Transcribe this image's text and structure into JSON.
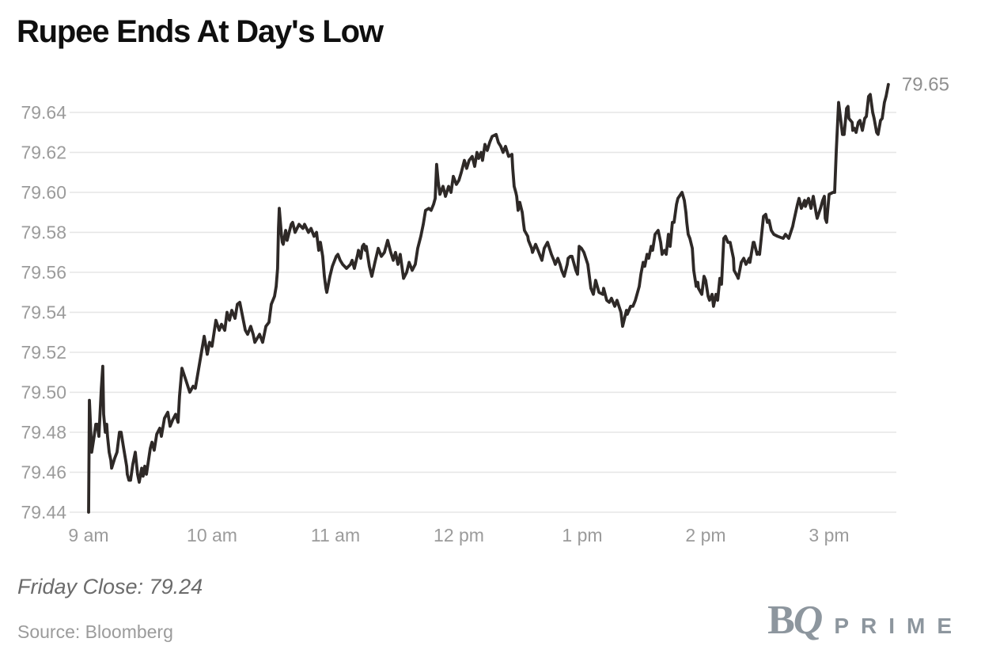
{
  "title": "Rupee Ends At Day's Low",
  "footer": {
    "note": "Friday Close: 79.24",
    "source": "Source: Bloomberg"
  },
  "logo": {
    "b": "B",
    "q": "Q",
    "prime": "PRIME",
    "color": "#8d969e"
  },
  "chart_data": {
    "type": "line",
    "title": "Rupee Ends At Day's Low",
    "x_unit": "minutes since 9:00 am",
    "xlim": [
      0,
      390
    ],
    "ylim": [
      79.43,
      79.66
    ],
    "grid": true,
    "end_label": "79.65",
    "friday_close": 79.24,
    "line_color": "#2e2927",
    "grid_color": "#e5e5e5",
    "axis_label_color": "#9b9b9b",
    "end_label_color": "#8f8f8f",
    "x_ticks": [
      {
        "t": 0,
        "label": "9 am"
      },
      {
        "t": 60,
        "label": "10 am"
      },
      {
        "t": 120,
        "label": "11 am"
      },
      {
        "t": 180,
        "label": "12 pm"
      },
      {
        "t": 240,
        "label": "1 pm"
      },
      {
        "t": 300,
        "label": "2 pm"
      },
      {
        "t": 360,
        "label": "3 pm"
      }
    ],
    "y_ticks": [
      "79.44",
      "79.46",
      "79.48",
      "79.50",
      "79.52",
      "79.54",
      "79.56",
      "79.58",
      "79.60",
      "79.62",
      "79.64"
    ],
    "points": [
      [
        0,
        79.44
      ],
      [
        0.4,
        79.496
      ],
      [
        1.5,
        79.47
      ],
      [
        2.7,
        79.478
      ],
      [
        3.5,
        79.484
      ],
      [
        4.2,
        79.484
      ],
      [
        5,
        79.478
      ],
      [
        6.2,
        79.502
      ],
      [
        6.9,
        79.513
      ],
      [
        7.3,
        79.489
      ],
      [
        8.1,
        79.48
      ],
      [
        8.8,
        79.484
      ],
      [
        9.2,
        79.478
      ],
      [
        10,
        79.47
      ],
      [
        10.8,
        79.466
      ],
      [
        11.2,
        79.462
      ],
      [
        12.7,
        79.467
      ],
      [
        13.8,
        79.47
      ],
      [
        15,
        79.48
      ],
      [
        15.8,
        79.48
      ],
      [
        16.9,
        79.473
      ],
      [
        18.5,
        79.463
      ],
      [
        18.8,
        79.459
      ],
      [
        19.6,
        79.456
      ],
      [
        20.4,
        79.456
      ],
      [
        21.5,
        79.464
      ],
      [
        22.7,
        79.47
      ],
      [
        23.8,
        79.459
      ],
      [
        24.6,
        79.455
      ],
      [
        25.8,
        79.462
      ],
      [
        26.5,
        79.458
      ],
      [
        27.3,
        79.463
      ],
      [
        28.1,
        79.459
      ],
      [
        30,
        79.472
      ],
      [
        30.8,
        79.475
      ],
      [
        31.9,
        79.471
      ],
      [
        33.1,
        79.479
      ],
      [
        34.6,
        79.482
      ],
      [
        35.4,
        79.478
      ],
      [
        36.9,
        79.487
      ],
      [
        38.5,
        79.49
      ],
      [
        39.6,
        79.483
      ],
      [
        40.8,
        79.486
      ],
      [
        42.3,
        79.489
      ],
      [
        43.5,
        79.485
      ],
      [
        44.2,
        79.498
      ],
      [
        45.4,
        79.512
      ],
      [
        47.3,
        79.506
      ],
      [
        49.2,
        79.5
      ],
      [
        50.8,
        79.503
      ],
      [
        51.9,
        79.502
      ],
      [
        56.2,
        79.528
      ],
      [
        57.7,
        79.519
      ],
      [
        58.8,
        79.525
      ],
      [
        60,
        79.523
      ],
      [
        61.9,
        79.536
      ],
      [
        63.5,
        79.531
      ],
      [
        64.6,
        79.534
      ],
      [
        66.2,
        79.531
      ],
      [
        67.3,
        79.54
      ],
      [
        68.5,
        79.536
      ],
      [
        69.6,
        79.541
      ],
      [
        71.2,
        79.537
      ],
      [
        72.3,
        79.544
      ],
      [
        73.5,
        79.545
      ],
      [
        76.2,
        79.531
      ],
      [
        77.3,
        79.529
      ],
      [
        78.8,
        79.533
      ],
      [
        80,
        79.529
      ],
      [
        80.8,
        79.525
      ],
      [
        83.1,
        79.529
      ],
      [
        84.6,
        79.525
      ],
      [
        86.2,
        79.533
      ],
      [
        87.7,
        79.535
      ],
      [
        88.8,
        79.544
      ],
      [
        90.4,
        79.548
      ],
      [
        91.2,
        79.553
      ],
      [
        91.9,
        79.562
      ],
      [
        92.3,
        79.582
      ],
      [
        92.7,
        79.592
      ],
      [
        93.8,
        79.578
      ],
      [
        94.2,
        79.575
      ],
      [
        94.6,
        79.574
      ],
      [
        95.8,
        79.581
      ],
      [
        96.5,
        79.576
      ],
      [
        98.5,
        79.584
      ],
      [
        99.2,
        79.585
      ],
      [
        100.4,
        79.58
      ],
      [
        102.3,
        79.584
      ],
      [
        104.2,
        79.582
      ],
      [
        105,
        79.584
      ],
      [
        106.9,
        79.58
      ],
      [
        108.1,
        79.582
      ],
      [
        109.6,
        79.578
      ],
      [
        110.8,
        79.58
      ],
      [
        111.9,
        79.571
      ],
      [
        112.7,
        79.575
      ],
      [
        113.8,
        79.568
      ],
      [
        114.6,
        79.558
      ],
      [
        115.4,
        79.552
      ],
      [
        115.8,
        79.55
      ],
      [
        117.3,
        79.558
      ],
      [
        118.5,
        79.563
      ],
      [
        120.4,
        79.568
      ],
      [
        121.2,
        79.569
      ],
      [
        122.3,
        79.566
      ],
      [
        123.5,
        79.564
      ],
      [
        125.4,
        79.562
      ],
      [
        127.3,
        79.564
      ],
      [
        128.1,
        79.566
      ],
      [
        129.2,
        79.562
      ],
      [
        130.8,
        79.569
      ],
      [
        131.2,
        79.571
      ],
      [
        132.3,
        79.567
      ],
      [
        133.1,
        79.573
      ],
      [
        133.8,
        79.574
      ],
      [
        134.6,
        79.571
      ],
      [
        135,
        79.573
      ],
      [
        136.5,
        79.563
      ],
      [
        137.7,
        79.558
      ],
      [
        139.2,
        79.565
      ],
      [
        140.8,
        79.572
      ],
      [
        142.3,
        79.568
      ],
      [
        143.8,
        79.57
      ],
      [
        145.4,
        79.576
      ],
      [
        146.9,
        79.57
      ],
      [
        148.1,
        79.566
      ],
      [
        149.2,
        79.57
      ],
      [
        150.4,
        79.564
      ],
      [
        151.5,
        79.569
      ],
      [
        153.1,
        79.557
      ],
      [
        154.6,
        79.56
      ],
      [
        155.8,
        79.565
      ],
      [
        157.3,
        79.561
      ],
      [
        158.8,
        79.564
      ],
      [
        160,
        79.572
      ],
      [
        161.5,
        79.578
      ],
      [
        162.7,
        79.584
      ],
      [
        163.8,
        79.591
      ],
      [
        165.4,
        79.592
      ],
      [
        166.5,
        79.591
      ],
      [
        167.7,
        79.594
      ],
      [
        168.5,
        79.597
      ],
      [
        169.2,
        79.614
      ],
      [
        170,
        79.605
      ],
      [
        170.8,
        79.599
      ],
      [
        171.5,
        79.601
      ],
      [
        172.3,
        79.603
      ],
      [
        173.5,
        79.598
      ],
      [
        175,
        79.603
      ],
      [
        176.2,
        79.6
      ],
      [
        177.3,
        79.608
      ],
      [
        178.8,
        79.604
      ],
      [
        180,
        79.606
      ],
      [
        181.2,
        79.61
      ],
      [
        182.7,
        79.616
      ],
      [
        183.8,
        79.612
      ],
      [
        185,
        79.616
      ],
      [
        186.5,
        79.618
      ],
      [
        187.7,
        79.613
      ],
      [
        188.8,
        79.62
      ],
      [
        189.6,
        79.617
      ],
      [
        190.8,
        79.62
      ],
      [
        191.5,
        79.616
      ],
      [
        192.7,
        79.624
      ],
      [
        193.8,
        79.621
      ],
      [
        195,
        79.625
      ],
      [
        196.2,
        79.628
      ],
      [
        198.1,
        79.629
      ],
      [
        199.2,
        79.625
      ],
      [
        200.4,
        79.623
      ],
      [
        201.5,
        79.62
      ],
      [
        202.7,
        79.623
      ],
      [
        204.2,
        79.618
      ],
      [
        205.8,
        79.619
      ],
      [
        206.2,
        79.612
      ],
      [
        206.9,
        79.603
      ],
      [
        207.7,
        79.6
      ],
      [
        208.1,
        79.598
      ],
      [
        208.8,
        79.591
      ],
      [
        209.6,
        79.595
      ],
      [
        210.8,
        79.59
      ],
      [
        211.5,
        79.584
      ],
      [
        211.9,
        79.581
      ],
      [
        213.5,
        79.578
      ],
      [
        213.8,
        79.576
      ],
      [
        215.4,
        79.572
      ],
      [
        215.8,
        79.57
      ],
      [
        217.3,
        79.574
      ],
      [
        218.5,
        79.571
      ],
      [
        219.6,
        79.568
      ],
      [
        220.4,
        79.566
      ],
      [
        221.5,
        79.572
      ],
      [
        223.1,
        79.575
      ],
      [
        225,
        79.569
      ],
      [
        226.2,
        79.566
      ],
      [
        226.9,
        79.564
      ],
      [
        228.1,
        79.567
      ],
      [
        229.2,
        79.564
      ],
      [
        230,
        79.561
      ],
      [
        231.2,
        79.558
      ],
      [
        232.7,
        79.564
      ],
      [
        233.1,
        79.567
      ],
      [
        234.2,
        79.568
      ],
      [
        235,
        79.568
      ],
      [
        236.9,
        79.561
      ],
      [
        237.7,
        79.559
      ],
      [
        238.5,
        79.573
      ],
      [
        239.6,
        79.572
      ],
      [
        240.8,
        79.57
      ],
      [
        242.7,
        79.564
      ],
      [
        244.2,
        79.552
      ],
      [
        245.4,
        79.549
      ],
      [
        246.5,
        79.556
      ],
      [
        248.1,
        79.55
      ],
      [
        250,
        79.549
      ],
      [
        250.4,
        79.552
      ],
      [
        251.9,
        79.546
      ],
      [
        253.1,
        79.545
      ],
      [
        254.2,
        79.547
      ],
      [
        255.8,
        79.543
      ],
      [
        256.9,
        79.546
      ],
      [
        258.8,
        79.54
      ],
      [
        259.6,
        79.533
      ],
      [
        261.5,
        79.541
      ],
      [
        261.9,
        79.539
      ],
      [
        263.5,
        79.543
      ],
      [
        264.6,
        79.543
      ],
      [
        265.8,
        79.546
      ],
      [
        267.7,
        79.553
      ],
      [
        268.5,
        79.559
      ],
      [
        269.6,
        79.565
      ],
      [
        270.4,
        79.563
      ],
      [
        271.5,
        79.569
      ],
      [
        272.3,
        79.567
      ],
      [
        273.5,
        79.573
      ],
      [
        274.2,
        79.571
      ],
      [
        275.4,
        79.579
      ],
      [
        276.9,
        79.581
      ],
      [
        278.1,
        79.575
      ],
      [
        278.8,
        79.569
      ],
      [
        280,
        79.571
      ],
      [
        280.8,
        79.569
      ],
      [
        281.9,
        79.579
      ],
      [
        282.7,
        79.573
      ],
      [
        283.8,
        79.585
      ],
      [
        284.6,
        79.585
      ],
      [
        285.8,
        79.594
      ],
      [
        286.5,
        79.597
      ],
      [
        288.5,
        79.6
      ],
      [
        289.6,
        79.596
      ],
      [
        290.4,
        79.59
      ],
      [
        290.8,
        79.585
      ],
      [
        291.5,
        79.579
      ],
      [
        292.3,
        79.577
      ],
      [
        293.5,
        79.572
      ],
      [
        294.2,
        79.561
      ],
      [
        295.4,
        79.553
      ],
      [
        296.2,
        79.555
      ],
      [
        296.5,
        79.552
      ],
      [
        298.1,
        79.549
      ],
      [
        299.2,
        79.558
      ],
      [
        300,
        79.556
      ],
      [
        301.2,
        79.548
      ],
      [
        301.9,
        79.546
      ],
      [
        303.1,
        79.549
      ],
      [
        303.8,
        79.543
      ],
      [
        305,
        79.549
      ],
      [
        305.8,
        79.546
      ],
      [
        306.9,
        79.557
      ],
      [
        307.7,
        79.554
      ],
      [
        308.8,
        79.577
      ],
      [
        309.6,
        79.578
      ],
      [
        310.8,
        79.575
      ],
      [
        311.9,
        79.575
      ],
      [
        313.5,
        79.567
      ],
      [
        313.8,
        79.561
      ],
      [
        315.4,
        79.558
      ],
      [
        315.8,
        79.557
      ],
      [
        317.3,
        79.565
      ],
      [
        318.5,
        79.567
      ],
      [
        319.6,
        79.564
      ],
      [
        321.2,
        79.567
      ],
      [
        321.5,
        79.565
      ],
      [
        323.1,
        79.575
      ],
      [
        323.5,
        79.575
      ],
      [
        325,
        79.569
      ],
      [
        325.4,
        79.57
      ],
      [
        326.2,
        79.569
      ],
      [
        328.1,
        79.588
      ],
      [
        329.2,
        79.589
      ],
      [
        330,
        79.585
      ],
      [
        330.8,
        79.586
      ],
      [
        331.9,
        79.581
      ],
      [
        333.1,
        79.579
      ],
      [
        335,
        79.578
      ],
      [
        337.7,
        79.577
      ],
      [
        338.8,
        79.579
      ],
      [
        340.4,
        79.577
      ],
      [
        342.3,
        79.583
      ],
      [
        342.7,
        79.585
      ],
      [
        344.6,
        79.594
      ],
      [
        345.4,
        79.597
      ],
      [
        346.5,
        79.592
      ],
      [
        348.1,
        79.596
      ],
      [
        348.5,
        79.593
      ],
      [
        350,
        79.597
      ],
      [
        351.2,
        79.592
      ],
      [
        352.3,
        79.598
      ],
      [
        353.8,
        79.589
      ],
      [
        354.2,
        79.587
      ],
      [
        355.8,
        79.592
      ],
      [
        356.9,
        79.596
      ],
      [
        357.7,
        79.598
      ],
      [
        358.1,
        79.587
      ],
      [
        358.8,
        79.585
      ],
      [
        360,
        79.599
      ],
      [
        361.9,
        79.6
      ],
      [
        362.7,
        79.6
      ],
      [
        363.5,
        79.621
      ],
      [
        364.6,
        79.645
      ],
      [
        365.8,
        79.635
      ],
      [
        366.5,
        79.629
      ],
      [
        367.3,
        79.629
      ],
      [
        368.5,
        79.642
      ],
      [
        369.2,
        79.643
      ],
      [
        369.6,
        79.637
      ],
      [
        371.2,
        79.635
      ],
      [
        371.5,
        79.631
      ],
      [
        372.3,
        79.632
      ],
      [
        373.1,
        79.63
      ],
      [
        374.2,
        79.635
      ],
      [
        375,
        79.636
      ],
      [
        376.2,
        79.631
      ],
      [
        377.3,
        79.637
      ],
      [
        378.1,
        79.638
      ],
      [
        379.2,
        79.648
      ],
      [
        380,
        79.649
      ],
      [
        381.2,
        79.64
      ],
      [
        381.9,
        79.637
      ],
      [
        383.1,
        79.63
      ],
      [
        383.8,
        79.629
      ],
      [
        385,
        79.636
      ],
      [
        385.8,
        79.637
      ],
      [
        386.9,
        79.645
      ],
      [
        387.7,
        79.648
      ],
      [
        388.8,
        79.654
      ]
    ]
  }
}
